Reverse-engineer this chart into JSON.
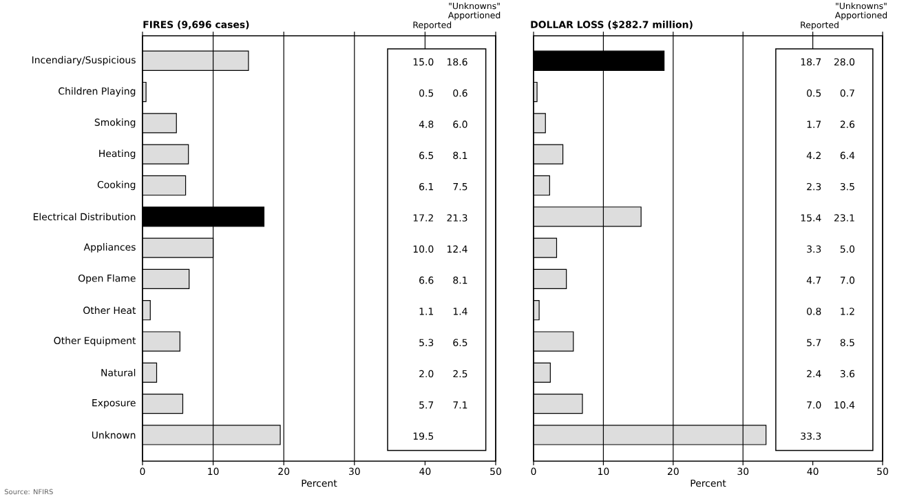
{
  "chart_data": [
    {
      "type": "bar",
      "orientation": "horizontal",
      "title": "FIRES (9,696 cases)",
      "xlabel": "Percent",
      "categories": [
        "Incendiary/Suspicious",
        "Children Playing",
        "Smoking",
        "Heating",
        "Cooking",
        "Electrical Distribution",
        "Appliances",
        "Open Flame",
        "Other Heat",
        "Other Equipment",
        "Natural",
        "Exposure",
        "Unknown"
      ],
      "values": [
        15.0,
        0.5,
        4.8,
        6.5,
        6.1,
        17.2,
        10.0,
        6.6,
        1.1,
        5.3,
        2.0,
        5.7,
        19.5
      ],
      "value_labels": [
        "15.0",
        "0.5",
        "4.8",
        "6.5",
        "6.1",
        "17.2",
        "10.0",
        "6.6",
        "1.1",
        "5.3",
        "2.0",
        "5.7",
        "19.5"
      ],
      "colors": [
        "#dddddd",
        "#dddddd",
        "#dddddd",
        "#dddddd",
        "#dddddd",
        "#000000",
        "#dddddd",
        "#dddddd",
        "#dddddd",
        "#dddddd",
        "#dddddd",
        "#dddddd",
        "#dddddd"
      ],
      "xlim": [
        0,
        50
      ],
      "xticks": [
        0,
        10,
        20,
        30,
        40,
        50
      ],
      "grid": "x",
      "annotations": [
        "Reported",
        "\"Unknowns\" Apportioned",
        "18.6",
        "0.6",
        "6.0",
        "8.1",
        "7.5",
        "21.3",
        "12.4",
        "8.1",
        "1.4",
        "6.5",
        "2.5",
        "7.1",
        "Source: NFIRS"
      ]
    },
    {
      "type": "bar",
      "orientation": "horizontal",
      "title": "DOLLAR LOSS ($282.7 million)",
      "xlabel": "Percent",
      "categories": [
        null,
        null,
        null,
        null,
        null,
        null,
        null,
        null,
        null,
        null,
        null,
        null,
        null
      ],
      "values": [
        18.7,
        0.5,
        1.7,
        4.2,
        2.3,
        15.4,
        3.3,
        4.7,
        0.8,
        5.7,
        2.4,
        7.0,
        33.3
      ],
      "value_labels": [
        "18.7",
        "0.5",
        "1.7",
        "4.2",
        "2.3",
        "15.4",
        "3.3",
        "4.7",
        "0.8",
        "5.7",
        "2.4",
        "7.0",
        "33.3"
      ],
      "colors": [
        "#000000",
        "#dddddd",
        "#dddddd",
        "#dddddd",
        "#dddddd",
        "#dddddd",
        "#dddddd",
        "#dddddd",
        "#dddddd",
        "#dddddd",
        "#dddddd",
        "#dddddd",
        "#dddddd"
      ],
      "xlim": [
        0,
        50
      ],
      "xticks": [
        0,
        10,
        20,
        30,
        40,
        50
      ],
      "grid": "x",
      "tick_labels": "x",
      "annotations": [
        "Reported",
        "\"Unknowns\" Apportioned",
        "28.0",
        "0.7",
        "2.6",
        "6.4",
        "3.5",
        "23.1",
        "5.0",
        "7.0",
        "1.2",
        "8.5",
        "3.6",
        "10.4"
      ]
    }
  ]
}
